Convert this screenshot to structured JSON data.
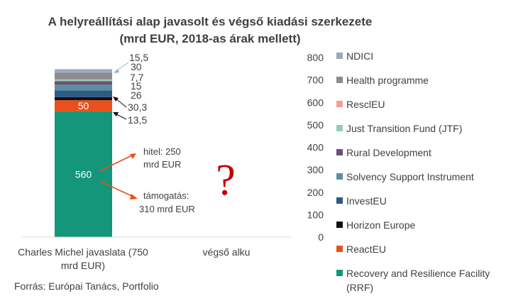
{
  "chart_data": {
    "type": "bar",
    "stacked": true,
    "title": "A helyreállítási alap javasolt és végső kiadási szerkezete",
    "subtitle": "(mrd EUR, 2018-as árak mellett)",
    "categories": [
      "Charles Michel javaslata (750 mrd EUR)",
      "végső alku"
    ],
    "ylim": [
      0,
      800
    ],
    "yticks": [
      "0",
      "100",
      "200",
      "300",
      "400",
      "500",
      "600",
      "700",
      "800"
    ],
    "yaxis_side": "right",
    "grid": false,
    "legend_position": "right",
    "series": [
      {
        "name": "Recovery and Resilience Facility (RRF)",
        "color": "#13967a",
        "values": [
          560,
          null
        ],
        "label": "560"
      },
      {
        "name": "ReactEU",
        "color": "#e8501e",
        "values": [
          50,
          null
        ],
        "label": "50"
      },
      {
        "name": "Horizon Europe",
        "color": "#111111",
        "values": [
          13.5,
          null
        ],
        "label": "13,5"
      },
      {
        "name": "InvestEU",
        "color": "#2e5a88",
        "values": [
          30.3,
          null
        ],
        "label": "30,3"
      },
      {
        "name": "Solvency Support Instrument",
        "color": "#5b8fa0",
        "values": [
          26,
          null
        ],
        "label": "26"
      },
      {
        "name": "Rural Development",
        "color": "#6f4c7a",
        "values": [
          15,
          null
        ],
        "label": "15"
      },
      {
        "name": "Just Transition Fund (JTF)",
        "color": "#94cfae",
        "values": [
          7.7,
          null
        ],
        "label": "7,7"
      },
      {
        "name": "ResclEU",
        "color": "#f4a09a",
        "values": [
          null,
          null
        ],
        "label": ""
      },
      {
        "name": "Health programme",
        "color": "#8c8c8c",
        "values": [
          30,
          null
        ],
        "label": "30"
      },
      {
        "name": "NDICI",
        "color": "#9ca9bd",
        "values": [
          15.5,
          null
        ],
        "label": "15,5"
      }
    ],
    "annotations": {
      "loan": [
        "hitel: 250",
        "mrd EUR"
      ],
      "grant": [
        "támogatás:",
        "310 mrd EUR"
      ],
      "question_mark": "?"
    },
    "source": "Forrás: Európai Tanács, Portfolio"
  }
}
